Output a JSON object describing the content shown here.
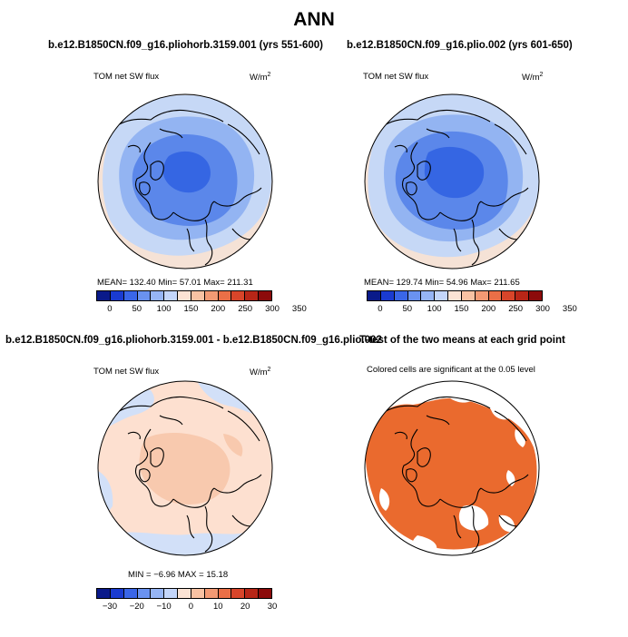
{
  "title": "ANN",
  "panels": {
    "top_left": {
      "title": "b.e12.B1850CN.f09_g16.pliohorb.3159.001 (yrs 551-600)",
      "variable": "TOM net SW flux",
      "units": "W/m",
      "units_sup": "2",
      "stats": "MEAN=  132.40    Min=    57.01    Max=  211.31"
    },
    "top_right": {
      "title": "b.e12.B1850CN.f09_g16.plio.002 (yrs 601-650)",
      "variable": "TOM net SW flux",
      "units": "W/m",
      "units_sup": "2",
      "stats": "MEAN=  129.74    Min=    54.96    Max=  211.65"
    },
    "bottom_left": {
      "title": "b.e12.B1850CN.f09_g16.pliohorb.3159.001 - b.e12.B1850CN.f09_g16.plio.002",
      "variable": "TOM net SW flux",
      "units": "W/m",
      "units_sup": "2",
      "stats": "MIN =   −6.96   MAX =   15.18"
    },
    "bottom_right": {
      "title": "T-test of the two means at each grid point",
      "subtitle": "Colored cells are significant at the 0.05 level"
    }
  },
  "colorbars": {
    "abs": {
      "colors": [
        "#0a1a8a",
        "#1a3bd0",
        "#3a66e8",
        "#6a92f0",
        "#96b5f5",
        "#c4d6fa",
        "#fbe3d4",
        "#f8c2a3",
        "#f39a74",
        "#ea6f47",
        "#d8452a",
        "#b82617",
        "#8c0b0b"
      ],
      "labels": [
        "0",
        "50",
        "100",
        "150",
        "200",
        "250",
        "300",
        "350"
      ]
    },
    "diff": {
      "colors": [
        "#0a1a8a",
        "#1a3bd0",
        "#3a66e8",
        "#6a92f0",
        "#96b5f5",
        "#c4d6fa",
        "#fbe3d4",
        "#f8c2a3",
        "#f39a74",
        "#ea6f47",
        "#d8452a",
        "#b82617",
        "#8c0b0b"
      ],
      "labels": [
        "−30",
        "−20",
        "−10",
        "0",
        "10",
        "20",
        "30"
      ]
    }
  },
  "map_colors": {
    "ocean_edge": "#f5e2d6",
    "ring_blue": "#c6d8f6",
    "mid_blue": "#93b4f2",
    "deep_blue": "#5b87ea",
    "core_blue": "#3566e3",
    "diff_base": "#fde0d0",
    "diff_light_blue": "#d2e0f8",
    "diff_peach": "#f8c9ae",
    "ttest_orange": "#ea6a2e"
  }
}
